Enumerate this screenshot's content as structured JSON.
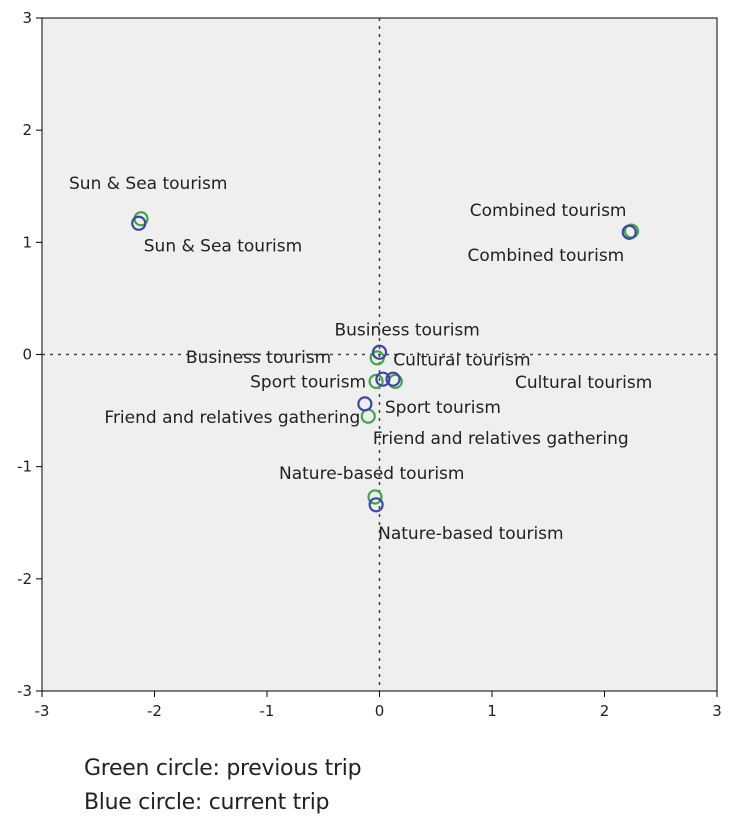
{
  "chart_data": {
    "type": "scatter",
    "title": "",
    "xlabel": "",
    "ylabel": "",
    "xlim": [
      -3,
      3
    ],
    "ylim": [
      -3,
      3
    ],
    "xticks": [
      -3,
      -2,
      -1,
      0,
      1,
      2,
      3
    ],
    "yticks": [
      -3,
      -2,
      -1,
      0,
      1,
      2,
      3
    ],
    "grid": false,
    "reference_lines": {
      "x": 0,
      "y": 0,
      "style": "dotted"
    },
    "series": [
      {
        "color": "#3fa846",
        "points": [
          {
            "label": "Sun & Sea tourism",
            "x": -2.12,
            "y": 1.21
          },
          {
            "label": "Combined tourism",
            "x": 2.24,
            "y": 1.1
          },
          {
            "label": "Business tourism",
            "x": -0.02,
            "y": -0.03
          },
          {
            "label": "Cultural tourism",
            "x": 0.14,
            "y": -0.24
          },
          {
            "label": "Sport tourism",
            "x": -0.03,
            "y": -0.24
          },
          {
            "label": "Friend and relatives gathering",
            "x": -0.1,
            "y": -0.55
          },
          {
            "label": "Nature-based tourism",
            "x": -0.04,
            "y": -1.27
          }
        ]
      },
      {
        "color": "#3d47a6",
        "points": [
          {
            "label": "Sun & Sea tourism",
            "x": -2.14,
            "y": 1.17
          },
          {
            "label": "Combined tourism",
            "x": 2.22,
            "y": 1.09
          },
          {
            "label": "Business tourism",
            "x": 0.0,
            "y": 0.02
          },
          {
            "label": "Cultural tourism",
            "x": 0.12,
            "y": -0.22
          },
          {
            "label": "Sport tourism",
            "x": 0.03,
            "y": -0.22
          },
          {
            "label": "Friend and relatives gathering",
            "x": -0.13,
            "y": -0.44
          },
          {
            "label": "Nature-based tourism",
            "x": -0.03,
            "y": -1.34
          }
        ]
      }
    ]
  },
  "captions": {
    "line1": "Green circle: previous trip",
    "line2": "Blue circle: current trip"
  }
}
